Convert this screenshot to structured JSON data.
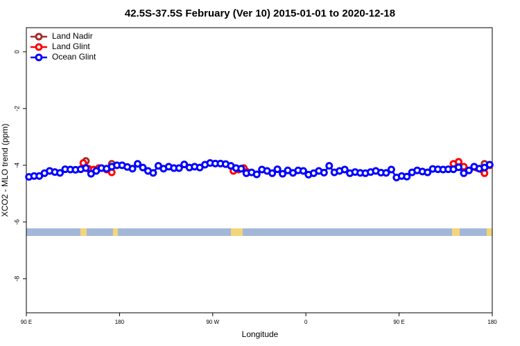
{
  "chart_data": {
    "type": "line",
    "title": "42.5S-37.5S February (Ver 10)   2015-01-01 to 2020-12-18",
    "x_label": "Longitude",
    "y_label": "XCO2 - MLO trend (ppm)",
    "xlim": [
      90,
      540
    ],
    "ylim": [
      -9.2,
      0.85
    ],
    "xticks": [
      {
        "value": 90,
        "label": "90 E"
      },
      {
        "value": 180,
        "label": "180"
      },
      {
        "value": 270,
        "label": "90 W"
      },
      {
        "value": 360,
        "label": "0"
      },
      {
        "value": 450,
        "label": "90 E"
      },
      {
        "value": 540,
        "label": "180"
      }
    ],
    "yticks": [
      0,
      -2,
      -4,
      -6,
      -8
    ],
    "legend": "top-left",
    "series": [
      {
        "name": "Land Nadir",
        "color": "#a52a2a",
        "x": [
          147.5,
          172.5,
          302.5,
          507.5,
          532.5
        ],
        "values": [
          -3.85,
          -3.95,
          -4.22,
          -3.88,
          -3.95
        ]
      },
      {
        "name": "Land Glint",
        "color": "#ff0000",
        "x": [
          145,
          150,
          155,
          160,
          167.5,
          172.5,
          290,
          295,
          300,
          302.5,
          502.5,
          507.5,
          512.5,
          532.5,
          537.5
        ],
        "values": [
          -3.92,
          -4.12,
          -4.15,
          -4.1,
          -4.15,
          -4.25,
          -4.2,
          -4.15,
          -4.1,
          -4.25,
          -3.95,
          -3.88,
          -4.05,
          -4.28,
          -4.0
        ]
      },
      {
        "name": "Ocean Glint",
        "color": "#0000ff",
        "x": [
          92.5,
          97.5,
          102.5,
          107.5,
          112.5,
          117.5,
          122.5,
          127.5,
          132.5,
          137.5,
          142.5,
          147.5,
          152.5,
          157.5,
          162.5,
          167.5,
          172.5,
          177.5,
          182.5,
          187.5,
          192.5,
          197.5,
          202.5,
          207.5,
          212.5,
          217.5,
          222.5,
          227.5,
          232.5,
          237.5,
          242.5,
          247.5,
          252.5,
          257.5,
          262.5,
          267.5,
          272.5,
          277.5,
          282.5,
          287.5,
          292.5,
          297.5,
          302.5,
          307.5,
          312.5,
          317.5,
          322.5,
          327.5,
          332.5,
          337.5,
          342.5,
          347.5,
          352.5,
          357.5,
          362.5,
          367.5,
          372.5,
          377.5,
          382.5,
          387.5,
          392.5,
          397.5,
          402.5,
          407.5,
          412.5,
          417.5,
          422.5,
          427.5,
          432.5,
          437.5,
          442.5,
          447.5,
          452.5,
          457.5,
          462.5,
          467.5,
          472.5,
          477.5,
          482.5,
          487.5,
          492.5,
          497.5,
          502.5,
          507.5,
          512.5,
          517.5,
          522.5,
          527.5,
          532.5,
          537.5
        ],
        "values": [
          -4.41,
          -4.38,
          -4.38,
          -4.28,
          -4.2,
          -4.24,
          -4.27,
          -4.14,
          -4.15,
          -4.16,
          -4.14,
          -4.1,
          -4.3,
          -4.2,
          -4.1,
          -4.12,
          -4.05,
          -4.0,
          -4.0,
          -4.06,
          -4.12,
          -3.95,
          -4.08,
          -4.2,
          -4.27,
          -4.02,
          -4.12,
          -4.05,
          -4.1,
          -4.1,
          -3.97,
          -4.08,
          -4.05,
          -4.08,
          -3.98,
          -3.92,
          -3.94,
          -3.94,
          -3.96,
          -4.02,
          -4.1,
          -4.12,
          -4.28,
          -4.25,
          -4.32,
          -4.15,
          -4.2,
          -4.28,
          -4.14,
          -4.3,
          -4.18,
          -4.27,
          -4.18,
          -4.2,
          -4.33,
          -4.28,
          -4.2,
          -4.26,
          -4.02,
          -4.25,
          -4.2,
          -4.15,
          -4.28,
          -4.24,
          -4.27,
          -4.28,
          -4.24,
          -4.2,
          -4.26,
          -4.27,
          -4.15,
          -4.43,
          -4.38,
          -4.4,
          -4.25,
          -4.18,
          -4.22,
          -4.25,
          -4.13,
          -4.14,
          -4.15,
          -4.14,
          -4.14,
          -4.07,
          -4.28,
          -4.18,
          -4.05,
          -4.12,
          -4.08,
          -3.98
        ]
      }
    ]
  }
}
